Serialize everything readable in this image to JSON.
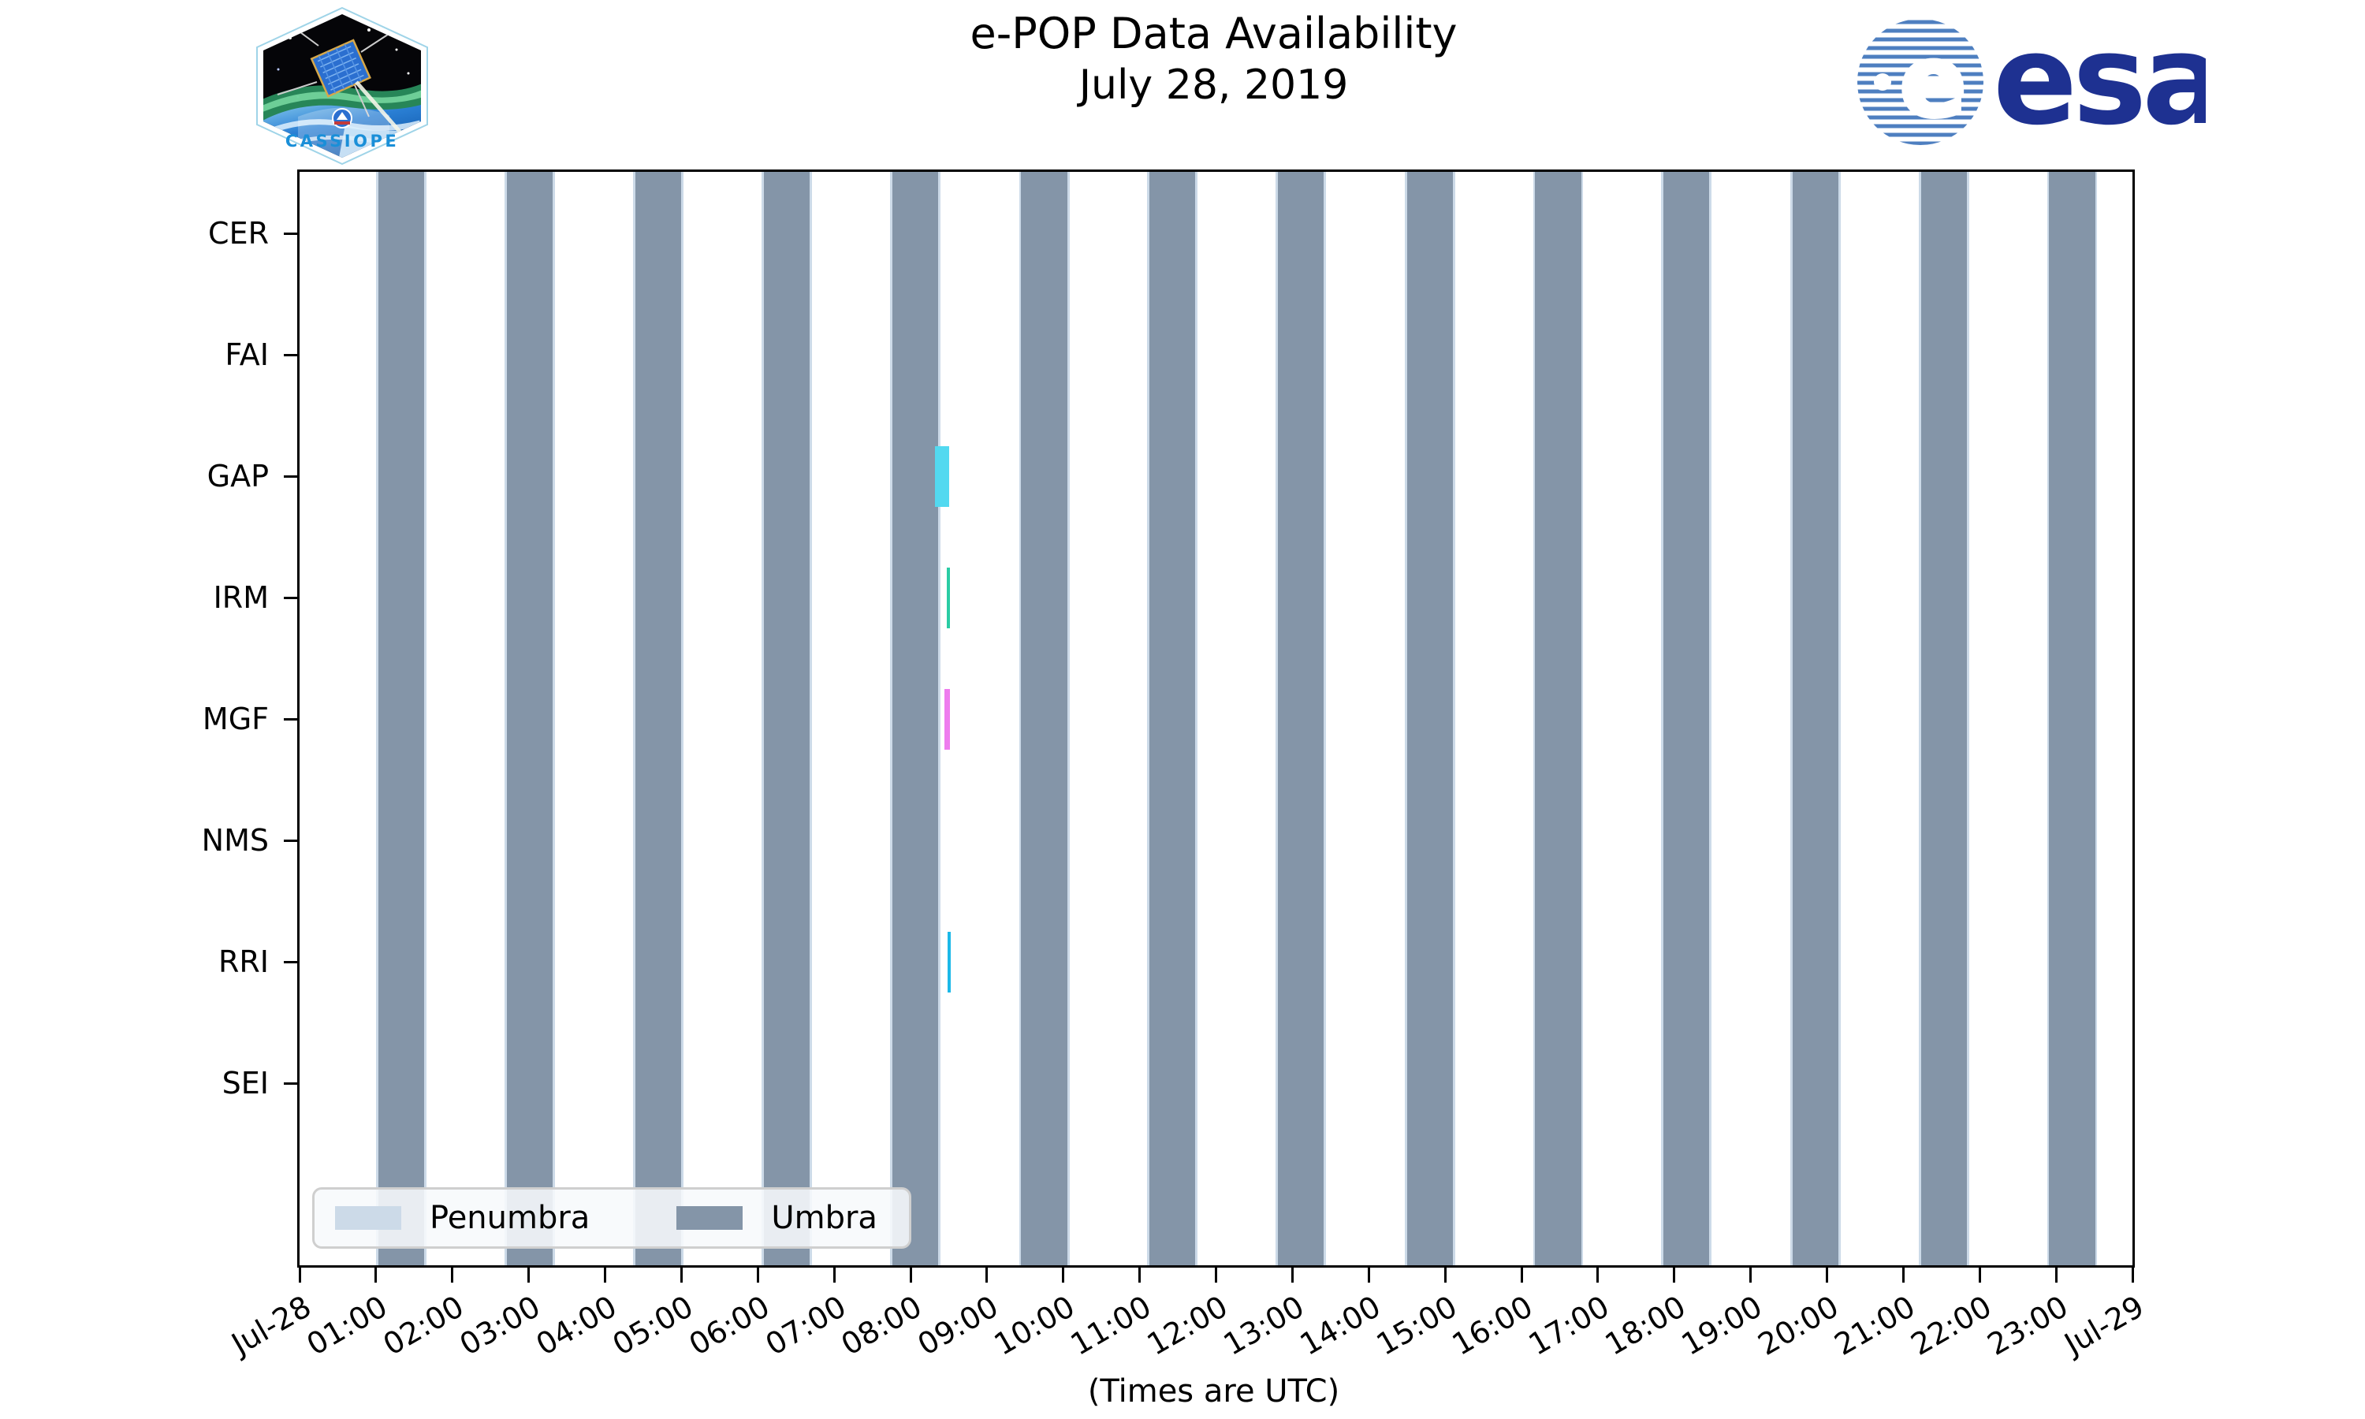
{
  "header": {
    "title_line1": "e-POP Data Availability",
    "title_line2": "July 28, 2019",
    "cassiope_patch": {
      "label": "CASSIOPE"
    },
    "esa_logo": {
      "wordmark": "esa"
    }
  },
  "chart_data": {
    "type": "timeline",
    "title": "e-POP Data Availability",
    "subtitle": "July 28, 2019",
    "xlabel": "(Times are UTC)",
    "x_axis": {
      "start": "Jul-28 00:00 UTC",
      "end": "Jul-29 00:00 UTC",
      "range_hours": [
        0,
        24
      ],
      "tick_every_hours": 1,
      "tick_labels": [
        "Jul-28",
        "01:00",
        "02:00",
        "03:00",
        "04:00",
        "05:00",
        "06:00",
        "07:00",
        "08:00",
        "09:00",
        "10:00",
        "11:00",
        "12:00",
        "13:00",
        "14:00",
        "15:00",
        "16:00",
        "17:00",
        "18:00",
        "19:00",
        "20:00",
        "21:00",
        "22:00",
        "23:00",
        "Jul-29"
      ]
    },
    "y_categories": [
      "CER",
      "FAI",
      "GAP",
      "IRM",
      "MGF",
      "NMS",
      "RRI",
      "SEI"
    ],
    "umbra_intervals_hours": [
      [
        1.03,
        1.63
      ],
      [
        2.71,
        3.31
      ],
      [
        4.4,
        5.0
      ],
      [
        6.08,
        6.68
      ],
      [
        7.76,
        8.36
      ],
      [
        9.45,
        10.05
      ],
      [
        11.13,
        11.73
      ],
      [
        12.81,
        13.41
      ],
      [
        14.5,
        15.1
      ],
      [
        16.18,
        16.78
      ],
      [
        17.86,
        18.46
      ],
      [
        19.55,
        20.15
      ],
      [
        21.23,
        21.83
      ],
      [
        22.91,
        23.51
      ]
    ],
    "penumbra_edge_width_hours": 0.03,
    "availability_marks": [
      {
        "instrument": "GAP",
        "start_hour": 8.32,
        "end_hour": 8.51,
        "color": "#52d9f0"
      },
      {
        "instrument": "IRM",
        "start_hour": 8.47,
        "end_hour": 8.51,
        "color": "#2acca4"
      },
      {
        "instrument": "MGF",
        "start_hour": 8.44,
        "end_hour": 8.52,
        "color": "#ee7cee"
      },
      {
        "instrument": "RRI",
        "start_hour": 8.48,
        "end_hour": 8.52,
        "color": "#1cb8e8"
      }
    ],
    "legend": {
      "position": "lower left",
      "entries": [
        {
          "label": "Penumbra",
          "color": "#ccdae8"
        },
        {
          "label": "Umbra",
          "color": "#8495a8"
        }
      ]
    },
    "colors": {
      "umbra": "#8495a8",
      "penumbra": "#ccdae8",
      "axis": "#000000",
      "esa_navy": "#1e3191",
      "esa_globe_stripes": "#4e7fc0",
      "cassiope_text_blue": "#1a8fd8"
    },
    "grid": false
  }
}
